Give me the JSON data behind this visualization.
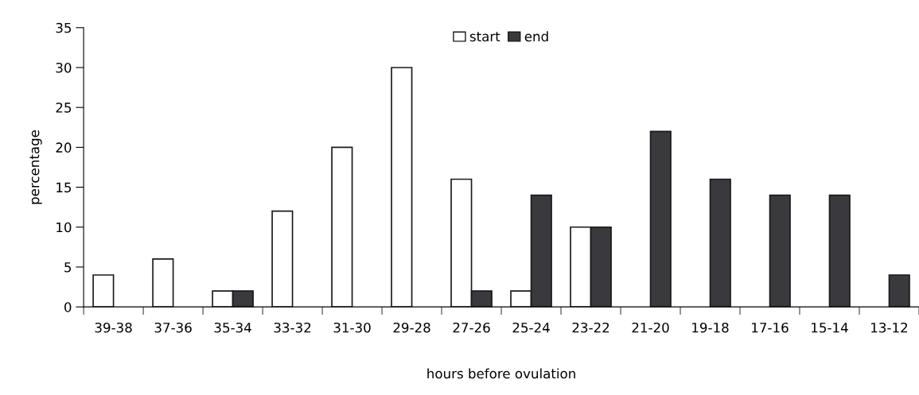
{
  "chart_data": {
    "type": "bar",
    "xlabel": "hours before ovulation",
    "ylabel": "percentage",
    "categories": [
      "39-38",
      "37-36",
      "35-34",
      "33-32",
      "31-30",
      "29-28",
      "27-26",
      "25-24",
      "23-22",
      "21-20",
      "19-18",
      "17-16",
      "15-14",
      "13-12"
    ],
    "series": [
      {
        "name": "start",
        "color": "#ffffff",
        "values": [
          4,
          6,
          2,
          12,
          20,
          30,
          16,
          2,
          10,
          0,
          0,
          0,
          0,
          0
        ]
      },
      {
        "name": "end",
        "color": "#3a3a3e",
        "values": [
          0,
          0,
          2,
          0,
          0,
          0,
          2,
          14,
          10,
          22,
          16,
          14,
          14,
          4
        ]
      }
    ],
    "ylim": [
      0,
      35
    ],
    "yticks": [
      0,
      5,
      10,
      15,
      20,
      25,
      30,
      35
    ],
    "grid": false,
    "legend": "top"
  }
}
